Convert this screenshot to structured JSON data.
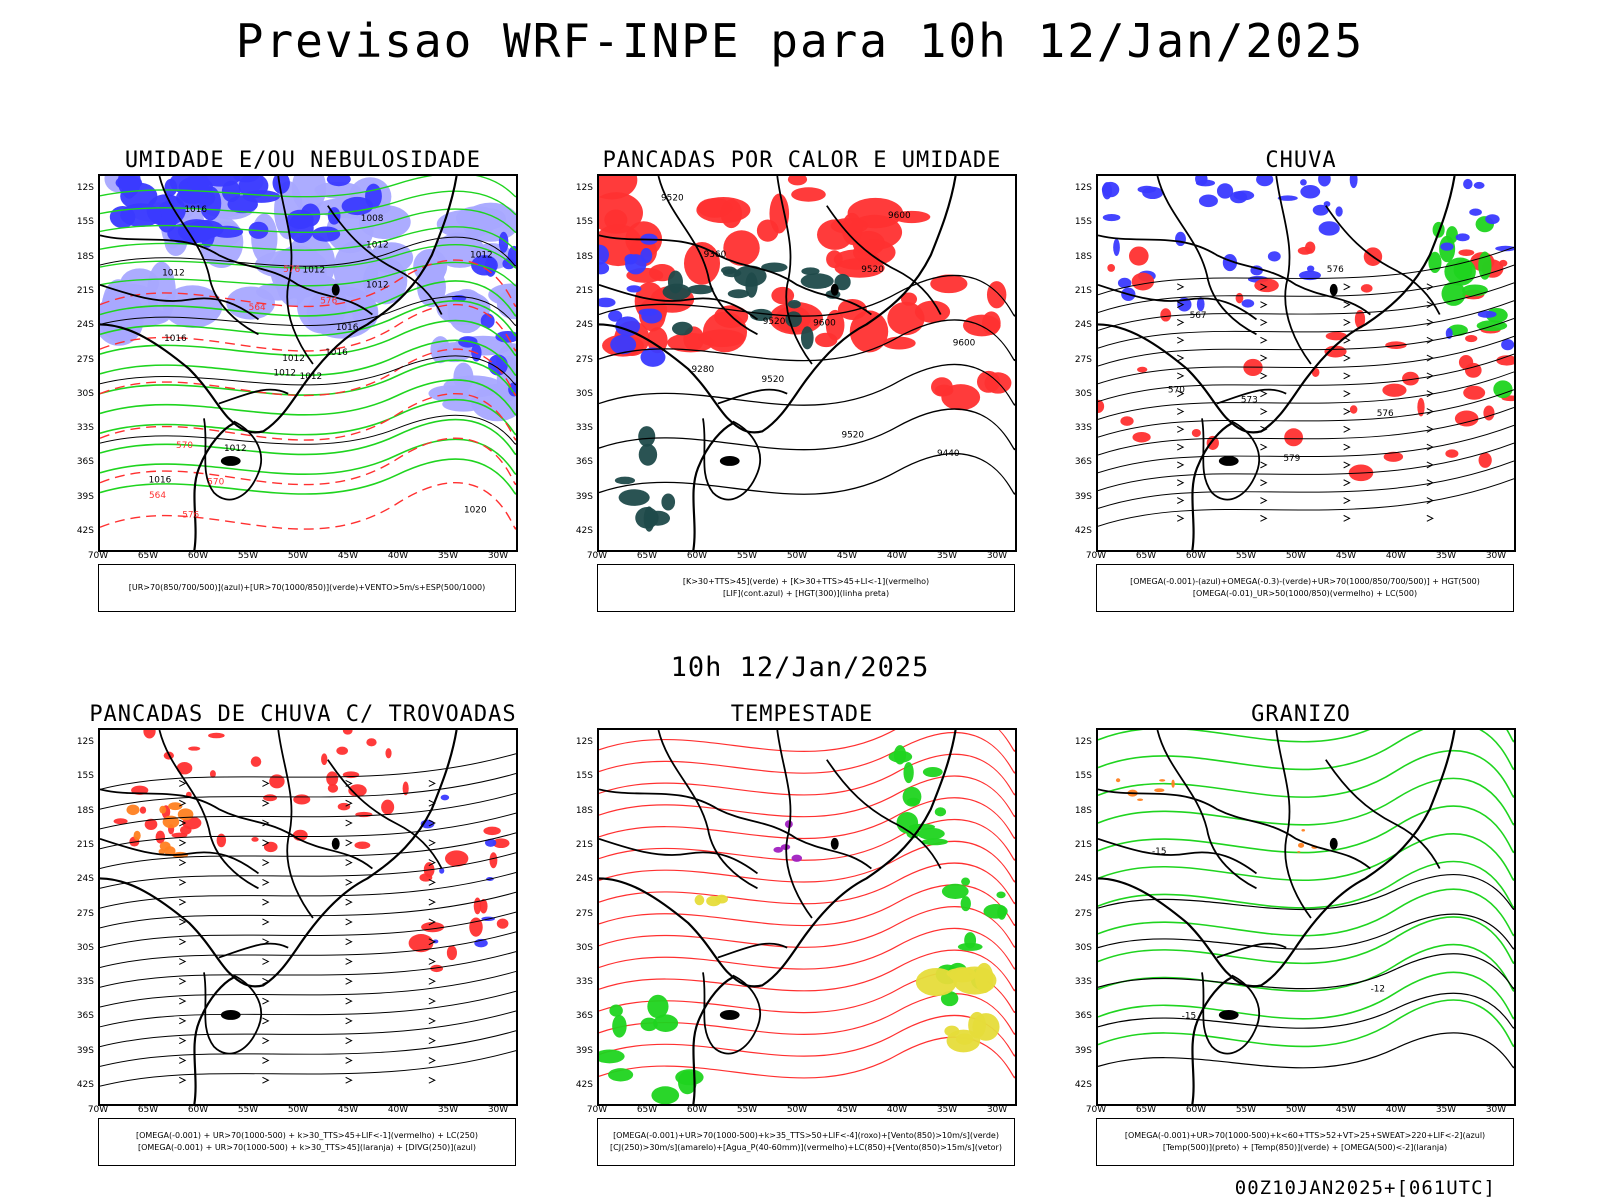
{
  "main_title": "Previsao WRF-INPE  para 10h 12/Jan/2025",
  "mid_title": "10h 12/Jan/2025",
  "footer": "00Z10JAN2025+[061UTC]",
  "lat_labels": [
    "12S",
    "15S",
    "18S",
    "21S",
    "24S",
    "27S",
    "30S",
    "33S",
    "36S",
    "39S",
    "42S"
  ],
  "lon_labels": [
    "70W",
    "65W",
    "60W",
    "55W",
    "50W",
    "45W",
    "40W",
    "35W",
    "30W"
  ],
  "colors": {
    "blue": "#3a3aff",
    "light_blue": "#a8a8ff",
    "green": "#1fd41f",
    "red": "#ff3030",
    "dark_teal": "#1f4a4a",
    "orange": "#ff8020",
    "purple": "#a020c0",
    "yellow": "#e6dc3a"
  },
  "panels": [
    {
      "title": "UMIDADE E/OU NEBULOSIDADE",
      "legend": [
        "[UR>70(850/700/500)](azul)+[UR>70(1000/850)](verde)+VENTO>5m/s+ESP(500/1000)"
      ],
      "map_labels": [
        "1012",
        "1012",
        "1012",
        "1016",
        "1016",
        "1012",
        "1008",
        "1012",
        "1012",
        "1016",
        "1016",
        "1020",
        "1016",
        "1012",
        "1012",
        "1012",
        "576",
        "576",
        "576",
        "570",
        "564",
        "564",
        "570"
      ]
    },
    {
      "title": "PANCADAS POR CALOR E UMIDADE",
      "legend": [
        "[K>30+TTS>45](verde) + [K>30+TTS>45+LI<-1](vermelho)",
        "[LIF](cont.azul) + [HGT(300)](linha preta)"
      ],
      "map_labels": [
        "9600",
        "9600",
        "9520",
        "9520",
        "9520",
        "9440",
        "9360",
        "9280",
        "9520",
        "9600",
        "9520"
      ]
    },
    {
      "title": "CHUVA",
      "legend": [
        "[OMEGA(-0.001)-(azul)+OMEGA(-0.3)-(verde)+UR>70(1000/850/700/500)] + HGT(500)",
        "[OMEGA(-0.01)_UR>50(1000/850)(vermelho) + LC(500)"
      ],
      "map_labels": [
        "576",
        "576",
        "573",
        "570",
        "567",
        "579"
      ]
    },
    {
      "title": "PANCADAS DE CHUVA C/ TROVOADAS",
      "legend": [
        "[OMEGA(-0.001) + UR>70(1000-500) + k>30_TTS>45+LIF<-1](vermelho) + LC(250)",
        "[OMEGA(-0.001) + UR>70(1000-500) + k>30_TTS>45](laranja) + [DIVG(250)](azul)"
      ],
      "map_labels": []
    },
    {
      "title": "TEMPESTADE",
      "legend": [
        "[OMEGA(-0.001)+UR>70(1000-500)+k>35_TTS>50+LIF<-4](roxo)+[Vento(850)>10m/s](verde)",
        "[CJ(250)>30m/s](amarelo)+[Agua_P(40-60mm)](vermelho)+LC(850)+[Vento(850)>15m/s](vetor)"
      ],
      "map_labels": []
    },
    {
      "title": "GRANIZO",
      "legend": [
        "[OMEGA(-0.001)+UR>70(1000-500)+k<60+TTS>52+VT>25+SWEAT>220+LIF<-2](azul)",
        "[Temp(500)](preto) + [Temp(850)](verde) + [OMEGA(500)<-2](laranja)"
      ],
      "map_labels": [
        "-12",
        "-15",
        "-15"
      ]
    }
  ]
}
